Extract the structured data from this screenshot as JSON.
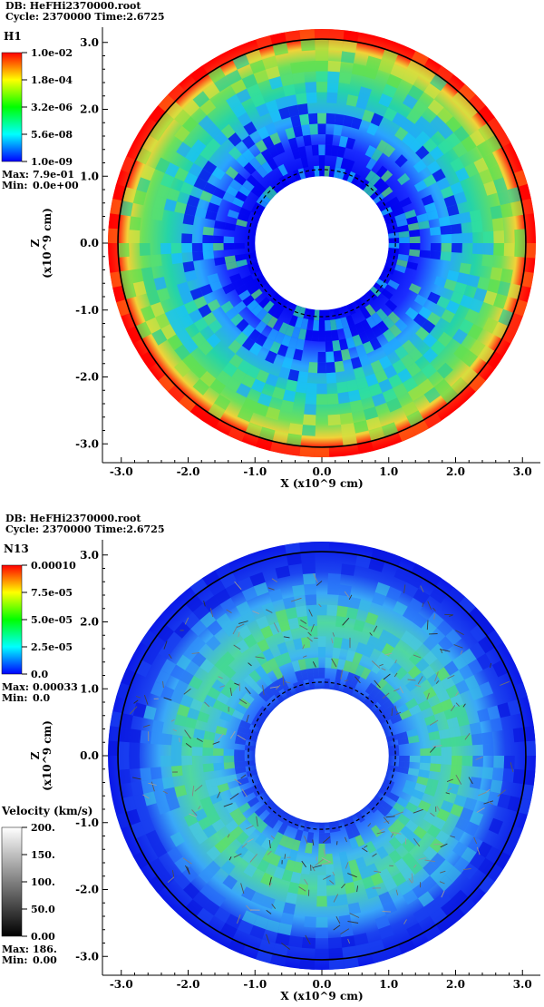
{
  "chart_data": [
    {
      "type": "heatmap",
      "db_label": "DB: HeFHi2370000.root",
      "cycle_label": "Cycle: 2370000  Time:2.6725",
      "variable": "H1",
      "colorbar": {
        "ticks": [
          "1.0e-02",
          "1.8e-04",
          "3.2e-06",
          "5.6e-08",
          "1.0e-09"
        ],
        "scale": "log",
        "colors": [
          "#ff0000",
          "#ffff00",
          "#00ff00",
          "#00ffff",
          "#0000ff"
        ]
      },
      "max_label": "Max:",
      "max_value": "7.9e-01",
      "min_label": "Min:",
      "min_value": "0.0e+00",
      "xlabel": "X (x10^9 cm)",
      "ylabel": "Z\n(x10^9 cm)",
      "xticks": [
        "-3.0",
        "-2.0",
        "-1.0",
        "0.0",
        "1.0",
        "2.0",
        "3.0"
      ],
      "yticks": [
        "3.0",
        "2.0",
        "1.0",
        "0.0",
        "-1.0",
        "-2.0",
        "-3.0"
      ],
      "xlim": [
        -3.2,
        3.2
      ],
      "ylim": [
        -3.2,
        3.2
      ],
      "shell": {
        "inner_radius": 1.0,
        "outer_radius": 3.2,
        "dashed_radius": 1.1,
        "solid_radius": 3.05
      }
    },
    {
      "type": "heatmap",
      "db_label": "DB: HeFHi2370000.root",
      "cycle_label": "Cycle: 2370000  Time:2.6725",
      "variable": "N13",
      "colorbar": {
        "ticks": [
          "0.00010",
          "7.5e-05",
          "5.0e-05",
          "2.5e-05",
          "0.0"
        ],
        "scale": "linear",
        "colors": [
          "#ff0000",
          "#ffff00",
          "#00ff00",
          "#00ffff",
          "#0000ff"
        ]
      },
      "max_label": "Max:",
      "max_value": "0.00033",
      "min_label": "Min:",
      "min_value": "0.0",
      "velocity": {
        "title": "Velocity (km/s)",
        "ticks": [
          "200.",
          "150.",
          "100.",
          "50.0",
          "0.00"
        ],
        "max_label": "Max:",
        "max_value": "186.",
        "min_label": "Min:",
        "min_value": "0.00"
      },
      "xlabel": "X (x10^9 cm)",
      "ylabel": "Z\n(x10^9 cm)",
      "xticks": [
        "-3.0",
        "-2.0",
        "-1.0",
        "0.0",
        "1.0",
        "2.0",
        "3.0"
      ],
      "yticks": [
        "3.0",
        "2.0",
        "1.0",
        "0.0",
        "-1.0",
        "-2.0",
        "-3.0"
      ],
      "xlim": [
        -3.2,
        3.2
      ],
      "ylim": [
        -3.2,
        3.2
      ],
      "shell": {
        "inner_radius": 1.0,
        "outer_radius": 3.2,
        "dashed_radius": 1.1,
        "solid_radius": 3.05
      }
    }
  ]
}
